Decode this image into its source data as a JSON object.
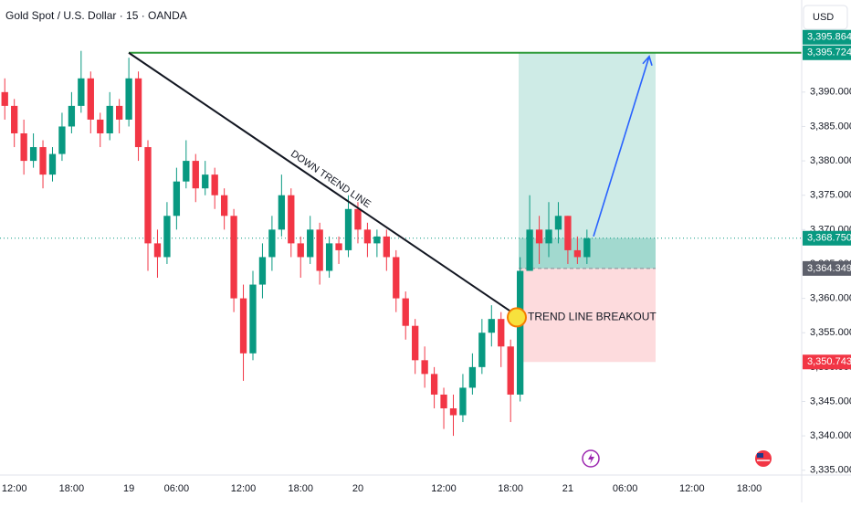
{
  "chart_data": {
    "type": "candlestick",
    "title": "Gold Spot / U.S. Dollar · 15 · OANDA",
    "currency": "USD",
    "categories": [
      null,
      "12:00",
      null,
      null,
      null,
      null,
      null,
      "18:00",
      null,
      null,
      null,
      null,
      null,
      "19",
      null,
      null,
      null,
      null,
      "06:00",
      null,
      null,
      null,
      null,
      null,
      null,
      "12:00",
      null,
      null,
      null,
      null,
      null,
      "18:00",
      null,
      null,
      null,
      null,
      null,
      "20",
      null,
      null,
      null,
      null,
      null,
      null,
      null,
      null,
      "12:00",
      null,
      null,
      null,
      null,
      null,
      null,
      "18:00",
      null,
      null,
      null,
      null,
      null,
      "21",
      null,
      null,
      null,
      null,
      null,
      "06:00",
      null,
      null,
      null,
      null,
      null,
      null,
      "12:00",
      null,
      null,
      null,
      null,
      null,
      "18:00",
      null,
      null,
      null,
      null,
      null
    ],
    "open": [
      3390,
      3388,
      3384,
      3380,
      3382,
      3378,
      3381,
      3385,
      3388,
      3392,
      3386,
      3384,
      3388,
      3386,
      3392,
      3382,
      3368,
      3366,
      3372,
      3377,
      3380,
      3376,
      3378,
      3375,
      3372,
      3360,
      3352,
      3362,
      3366,
      3370,
      3375,
      3368,
      3366,
      3370,
      3364,
      3368,
      3367,
      3373,
      3370,
      3368,
      3369,
      3366,
      3360,
      3356,
      3351,
      3349,
      3346,
      3344,
      3343,
      3347,
      3350,
      3355,
      3357,
      3353,
      3346,
      3364,
      3370,
      3368,
      3370,
      3372,
      3367,
      3366,
      null,
      null,
      null,
      null,
      null,
      null,
      null,
      null,
      null,
      null,
      null,
      null,
      null,
      null,
      null,
      null,
      null,
      null,
      null,
      null,
      null,
      null
    ],
    "high": [
      3392,
      3389,
      3386,
      3384,
      3383,
      3382,
      3387,
      3390,
      3396,
      3393,
      3387,
      3390,
      3389,
      3395,
      3393,
      3383,
      3370,
      3374,
      3379,
      3383,
      3381,
      3380,
      3379,
      3376,
      3373,
      3362,
      3364,
      3368,
      3372,
      3378,
      3376,
      3369,
      3372,
      3371,
      3369,
      3369,
      3375,
      3374,
      3371,
      3370,
      3370,
      3367,
      3361,
      3357,
      3353,
      3350,
      3347,
      3346,
      3349,
      3352,
      3357,
      3359,
      3358,
      3354,
      3366,
      3375,
      3372,
      3374,
      3374,
      3372,
      3369,
      3370,
      null,
      null,
      null,
      null,
      null,
      null,
      null,
      null,
      null,
      null,
      null,
      null,
      null,
      null,
      null,
      null,
      null,
      null,
      null,
      null,
      null,
      null
    ],
    "low": [
      3386,
      3382,
      3378,
      3379,
      3376,
      3377,
      3380,
      3384,
      3387,
      3384,
      3382,
      3383,
      3384,
      3385,
      3380,
      3364,
      3363,
      3365,
      3370,
      3376,
      3374,
      3375,
      3373,
      3370,
      3358,
      3348,
      3351,
      3360,
      3364,
      3369,
      3366,
      3363,
      3365,
      3362,
      3363,
      3365,
      3366,
      3368,
      3366,
      3366,
      3364,
      3358,
      3354,
      3349,
      3347,
      3344,
      3341,
      3340,
      3342,
      3346,
      3349,
      3353,
      3350,
      3342,
      3345,
      3364,
      3365,
      3366,
      3368,
      3365,
      3365,
      3365,
      null,
      null,
      null,
      null,
      null,
      null,
      null,
      null,
      null,
      null,
      null,
      null,
      null,
      null,
      null,
      null,
      null,
      null,
      null,
      null,
      null,
      null
    ],
    "close": [
      3388,
      3384,
      3380,
      3382,
      3378,
      3381,
      3385,
      3388,
      3392,
      3386,
      3384,
      3388,
      3386,
      3392,
      3382,
      3368,
      3366,
      3372,
      3377,
      3380,
      3376,
      3378,
      3375,
      3372,
      3360,
      3352,
      3362,
      3366,
      3370,
      3375,
      3368,
      3366,
      3370,
      3364,
      3368,
      3367,
      3373,
      3370,
      3368,
      3369,
      3366,
      3360,
      3356,
      3351,
      3349,
      3346,
      3344,
      3343,
      3347,
      3350,
      3355,
      3357,
      3353,
      3346,
      3364,
      3370,
      3368,
      3370,
      3372,
      3367,
      3366,
      3368.75,
      null,
      null,
      null,
      null,
      null,
      null,
      null,
      null,
      null,
      null,
      null,
      null,
      null,
      null,
      null,
      null,
      null,
      null,
      null,
      null,
      null,
      null
    ],
    "up_color": "#089981",
    "down_color": "#f23645",
    "ylim": [
      3334.3,
      3403.4
    ],
    "yticks": [
      {
        "value": 3335,
        "label": "3,335.000"
      },
      {
        "value": 3340,
        "label": "3,340.000"
      },
      {
        "value": 3345,
        "label": "3,345.000"
      },
      {
        "value": 3350,
        "label": "3,350.000"
      },
      {
        "value": 3355,
        "label": "3,355.000"
      },
      {
        "value": 3360,
        "label": "3,360.000"
      },
      {
        "value": 3365,
        "label": "3,365.000"
      },
      {
        "value": 3370,
        "label": "3,370.000"
      },
      {
        "value": 3375,
        "label": "3,375.000"
      },
      {
        "value": 3380,
        "label": "3,380.000"
      },
      {
        "value": 3385,
        "label": "3,385.000"
      },
      {
        "value": 3390,
        "label": "3,390.000"
      }
    ],
    "price_labels": [
      {
        "value": 3395.724,
        "label": "3,395.724",
        "color": "#089981"
      },
      {
        "value": 3395.864,
        "label": "3,395.864",
        "color": "#089981"
      },
      {
        "value": 3368.75,
        "label": "3,368.750",
        "color": "#089981"
      },
      {
        "value": 3364.349,
        "label": "3,364.349",
        "color": "#5d606b"
      },
      {
        "value": 3350.743,
        "label": "3,350.743",
        "color": "#f23645"
      }
    ],
    "resistance": {
      "value": 3395.724,
      "color": "#2e9b3a"
    },
    "trend_line": {
      "label": "DOWN TREND LINE",
      "start": 3395.724,
      "end": 3357.5
    },
    "breakout_label": "TREND LINE BREAKOUT",
    "position": {
      "target": 3395.724,
      "entry": 3364.349,
      "stop": 3350.743
    }
  }
}
